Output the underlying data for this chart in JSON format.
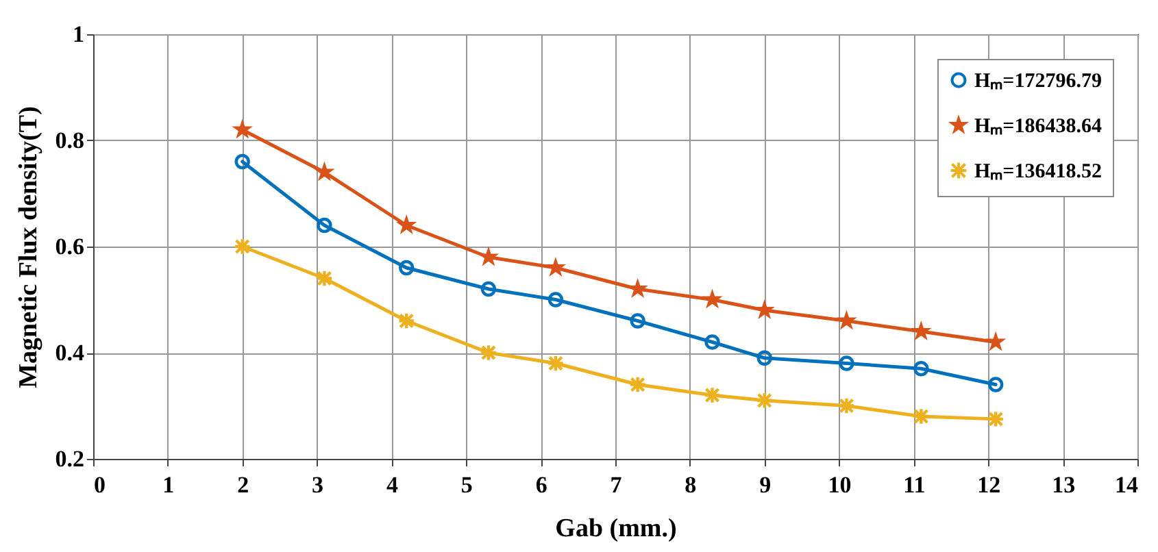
{
  "chart_data": {
    "type": "line",
    "xlabel": "Gab (mm.)",
    "ylabel": "Magnetic Flux density(T)",
    "x": [
      2,
      3.1,
      4.2,
      5.3,
      6.2,
      7.3,
      8.3,
      9,
      10.1,
      11.1,
      12.1
    ],
    "series": [
      {
        "name": "Hₘ=172796.79",
        "color": "#0072bd",
        "marker": "circle",
        "values": [
          0.76,
          0.64,
          0.56,
          0.52,
          0.5,
          0.46,
          0.42,
          0.39,
          0.38,
          0.37,
          0.34
        ]
      },
      {
        "name": "Hₘ=186438.64",
        "color": "#d95319",
        "marker": "star",
        "values": [
          0.82,
          0.74,
          0.64,
          0.58,
          0.56,
          0.52,
          0.5,
          0.48,
          0.46,
          0.44,
          0.42
        ]
      },
      {
        "name": "Hₘ=136418.52",
        "color": "#edb120",
        "marker": "cross",
        "values": [
          0.6,
          0.54,
          0.46,
          0.4,
          0.38,
          0.34,
          0.32,
          0.31,
          0.3,
          0.28,
          0.275
        ]
      }
    ],
    "xlim": [
      0,
      14
    ],
    "xticks": [
      0,
      1,
      2,
      3,
      4,
      5,
      6,
      7,
      8,
      9,
      10,
      11,
      12,
      13,
      14
    ],
    "ylim": [
      0.2,
      1
    ],
    "yticks": [
      0.2,
      0.4,
      0.6,
      0.8,
      1
    ],
    "grid": true,
    "legend": "top right",
    "line_style": "solid"
  }
}
